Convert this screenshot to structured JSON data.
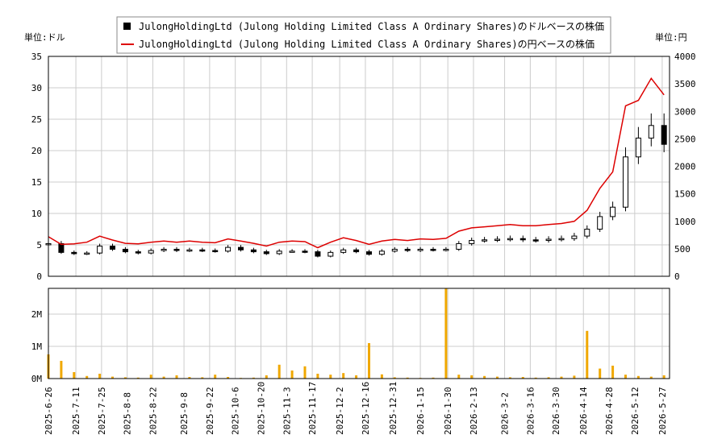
{
  "chart_data": [
    {
      "type": "line",
      "legend": [
        {
          "label": "JulongHoldingLtd (Julong Holding Limited Class A Ordinary Shares)のドルベースの株価",
          "color": "#000000",
          "marker": "box"
        },
        {
          "label": "JulongHoldingLtd (Julong Holding Limited Class A Ordinary Shares)の円ベースの株価",
          "color": "#dd0000",
          "marker": "line"
        }
      ],
      "left_unit": "単位:ドル",
      "right_unit": "単位:円",
      "ylim_left": [
        0,
        35
      ],
      "ylim_right": [
        0,
        4000
      ],
      "yticks_left": [
        "0",
        "5",
        "10",
        "15",
        "20",
        "25",
        "30",
        "35"
      ],
      "yticks_right": [
        "0",
        "500",
        "1000",
        "1500",
        "2000",
        "2500",
        "3000",
        "3500",
        "4000"
      ],
      "grid": true,
      "series": [
        {
          "color": "#000000",
          "style": "candlestick",
          "x": [
            "2025-06-26",
            "2025-07-03",
            "2025-07-10",
            "2025-07-17",
            "2025-07-24",
            "2025-07-31",
            "2025-08-07",
            "2025-08-14",
            "2025-08-21",
            "2025-08-28",
            "2025-09-04",
            "2025-09-11",
            "2025-09-18",
            "2025-09-25",
            "2025-10-02",
            "2025-10-09",
            "2025-10-16",
            "2025-10-23",
            "2025-10-30",
            "2025-11-06",
            "2025-11-13",
            "2025-11-20",
            "2025-11-27",
            "2025-12-04",
            "2025-12-11",
            "2025-12-18",
            "2025-12-25",
            "2026-01-01",
            "2026-01-08",
            "2026-01-15",
            "2026-01-22",
            "2026-01-29",
            "2026-02-05",
            "2026-02-12",
            "2026-02-19",
            "2026-02-26",
            "2026-03-05",
            "2026-03-12",
            "2026-03-19",
            "2026-03-26",
            "2026-04-02",
            "2026-04-09",
            "2026-04-16",
            "2026-04-23",
            "2026-04-30",
            "2026-05-07",
            "2026-05-14",
            "2026-05-21",
            "2026-05-28"
          ],
          "values": [
            5.2,
            3.8,
            3.6,
            3.7,
            4.8,
            4.3,
            3.9,
            3.7,
            4.1,
            4.3,
            4.1,
            4.2,
            4.1,
            4.0,
            4.6,
            4.2,
            3.9,
            3.6,
            4.0,
            4.0,
            3.9,
            3.2,
            3.8,
            4.2,
            3.9,
            3.5,
            4.0,
            4.3,
            4.1,
            4.3,
            4.2,
            4.3,
            5.2,
            5.7,
            5.8,
            5.9,
            6.0,
            5.8,
            5.7,
            5.9,
            6.0,
            6.4,
            7.5,
            9.5,
            11,
            19,
            22,
            24,
            21
          ]
        },
        {
          "color": "#dd0000",
          "style": "line",
          "x": [
            "2025-06-26",
            "2025-07-03",
            "2025-07-10",
            "2025-07-17",
            "2025-07-24",
            "2025-07-31",
            "2025-08-07",
            "2025-08-14",
            "2025-08-21",
            "2025-08-28",
            "2025-09-04",
            "2025-09-11",
            "2025-09-18",
            "2025-09-25",
            "2025-10-02",
            "2025-10-09",
            "2025-10-16",
            "2025-10-23",
            "2025-10-30",
            "2025-11-06",
            "2025-11-13",
            "2025-11-20",
            "2025-11-27",
            "2025-12-04",
            "2025-12-11",
            "2025-12-18",
            "2025-12-25",
            "2026-01-01",
            "2026-01-08",
            "2026-01-15",
            "2026-01-22",
            "2026-01-29",
            "2026-02-05",
            "2026-02-12",
            "2026-02-19",
            "2026-02-26",
            "2026-03-05",
            "2026-03-12",
            "2026-03-19",
            "2026-03-26",
            "2026-04-02",
            "2026-04-09",
            "2026-04-16",
            "2026-04-23",
            "2026-04-30",
            "2026-05-07",
            "2026-05-14",
            "2026-05-21",
            "2026-05-28"
          ],
          "values": [
            720,
            580,
            590,
            620,
            730,
            660,
            600,
            590,
            620,
            640,
            620,
            640,
            620,
            610,
            680,
            640,
            600,
            550,
            620,
            640,
            630,
            520,
            620,
            700,
            650,
            580,
            640,
            670,
            650,
            680,
            670,
            690,
            820,
            880,
            900,
            920,
            940,
            920,
            920,
            940,
            960,
            1000,
            1200,
            1600,
            1900,
            3100,
            3200,
            3600,
            3300
          ]
        }
      ]
    },
    {
      "type": "bar",
      "ylim": [
        0,
        2800000
      ],
      "yticks": [
        "0M",
        "1M",
        "2M"
      ],
      "grid": true,
      "bar_color": "#f0a800",
      "x": [
        "2025-06-26",
        "2025-07-03",
        "2025-07-10",
        "2025-07-17",
        "2025-07-24",
        "2025-07-31",
        "2025-08-07",
        "2025-08-14",
        "2025-08-21",
        "2025-08-28",
        "2025-09-04",
        "2025-09-11",
        "2025-09-18",
        "2025-09-25",
        "2025-10-02",
        "2025-10-09",
        "2025-10-16",
        "2025-10-23",
        "2025-10-30",
        "2025-11-06",
        "2025-11-13",
        "2025-11-20",
        "2025-11-27",
        "2025-12-04",
        "2025-12-11",
        "2025-12-18",
        "2025-12-25",
        "2026-01-01",
        "2026-01-08",
        "2026-01-15",
        "2026-01-22",
        "2026-01-29",
        "2026-02-05",
        "2026-02-12",
        "2026-02-19",
        "2026-02-26",
        "2026-03-05",
        "2026-03-12",
        "2026-03-19",
        "2026-03-26",
        "2026-04-02",
        "2026-04-09",
        "2026-04-16",
        "2026-04-23",
        "2026-04-30",
        "2026-05-07",
        "2026-05-14",
        "2026-05-21",
        "2026-05-28"
      ],
      "values": [
        750000,
        550000,
        200000,
        80000,
        150000,
        60000,
        40000,
        30000,
        120000,
        60000,
        100000,
        50000,
        40000,
        120000,
        50000,
        20000,
        30000,
        100000,
        430000,
        250000,
        380000,
        150000,
        120000,
        170000,
        100000,
        1100000,
        130000,
        40000,
        30000,
        20000,
        30000,
        2800000,
        120000,
        100000,
        80000,
        60000,
        40000,
        50000,
        30000,
        40000,
        60000,
        90000,
        1480000,
        310000,
        400000,
        120000,
        80000,
        60000,
        100000
      ]
    }
  ],
  "x_tick_labels": [
    "2025-6-26",
    "2025-7-11",
    "2025-7-25",
    "2025-8-8",
    "2025-8-22",
    "2025-9-8",
    "2025-9-22",
    "2025-10-6",
    "2025-10-20",
    "2025-11-3",
    "2025-11-17",
    "2025-12-2",
    "2025-12-16",
    "2025-12-31",
    "2026-1-15",
    "2026-1-30",
    "2026-2-13",
    "2026-3-2",
    "2026-3-16",
    "2026-3-30",
    "2026-4-14",
    "2026-4-28",
    "2026-5-12",
    "2026-5-27"
  ]
}
